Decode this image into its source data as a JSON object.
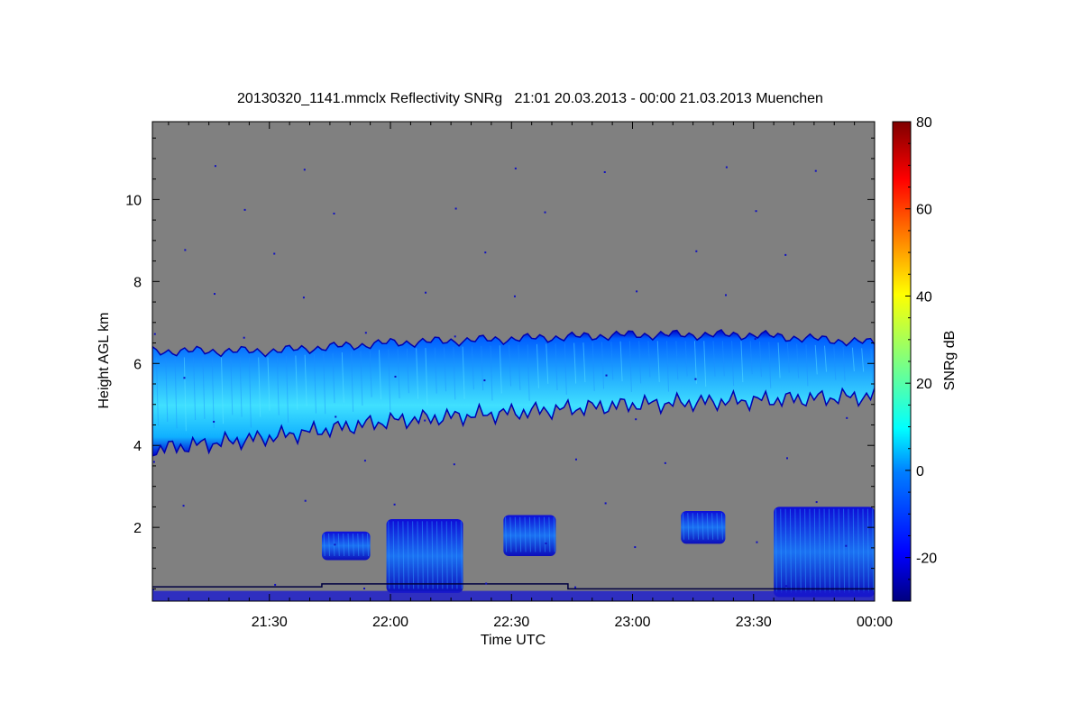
{
  "chart_data": {
    "type": "heatmap",
    "title": "20130320_1141.mmclx Reflectivity SNRg   21:01 20.03.2013 - 00:00 21.03.2013 Muenchen",
    "xlabel": "Time UTC",
    "ylabel": "Height AGL km",
    "x_range_minutes": [
      1261,
      1440
    ],
    "x_ticks": [
      {
        "minute": 1290,
        "label": "21:30"
      },
      {
        "minute": 1320,
        "label": "22:00"
      },
      {
        "minute": 1350,
        "label": "22:30"
      },
      {
        "minute": 1380,
        "label": "23:00"
      },
      {
        "minute": 1410,
        "label": "23:30"
      },
      {
        "minute": 1440,
        "label": "00:00"
      }
    ],
    "ylim": [
      0.2,
      11.9
    ],
    "y_ticks": [
      {
        "value": 2,
        "label": "2"
      },
      {
        "value": 4,
        "label": "4"
      },
      {
        "value": 6,
        "label": "6"
      },
      {
        "value": 8,
        "label": "8"
      },
      {
        "value": 10,
        "label": "10"
      }
    ],
    "colorbar": {
      "label": "SNRg dB",
      "range": [
        -30,
        80
      ],
      "ticks": [
        {
          "value": -20,
          "label": "-20"
        },
        {
          "value": 0,
          "label": "0"
        },
        {
          "value": 20,
          "label": "20"
        },
        {
          "value": 40,
          "label": "40"
        },
        {
          "value": 60,
          "label": "60"
        },
        {
          "value": 80,
          "label": "80"
        }
      ],
      "colormap": [
        "#00007f",
        "#0000ff",
        "#007fff",
        "#00ffff",
        "#7fff7f",
        "#ffff00",
        "#ff7f00",
        "#ff0000",
        "#7f0000"
      ]
    },
    "background_color": "#808080",
    "cloud_layers": [
      {
        "name": "upper-cloud",
        "top_km": [
          [
            1261,
            6.3
          ],
          [
            1290,
            6.3
          ],
          [
            1320,
            6.5
          ],
          [
            1350,
            6.6
          ],
          [
            1380,
            6.7
          ],
          [
            1410,
            6.7
          ],
          [
            1440,
            6.5
          ]
        ],
        "base_km": [
          [
            1261,
            3.9
          ],
          [
            1290,
            4.2
          ],
          [
            1320,
            4.6
          ],
          [
            1350,
            4.8
          ],
          [
            1380,
            5.0
          ],
          [
            1410,
            5.1
          ],
          [
            1440,
            5.2
          ]
        ]
      },
      {
        "name": "lower-cloud",
        "segments": [
          {
            "start": 1303,
            "end": 1315,
            "base": 1.2,
            "top": 1.9
          },
          {
            "start": 1319,
            "end": 1338,
            "base": 0.4,
            "top": 2.2
          },
          {
            "start": 1348,
            "end": 1361,
            "base": 1.3,
            "top": 2.3
          },
          {
            "start": 1392,
            "end": 1403,
            "base": 1.6,
            "top": 2.4
          },
          {
            "start": 1415,
            "end": 1440,
            "base": 0.3,
            "top": 2.5
          }
        ]
      }
    ]
  }
}
